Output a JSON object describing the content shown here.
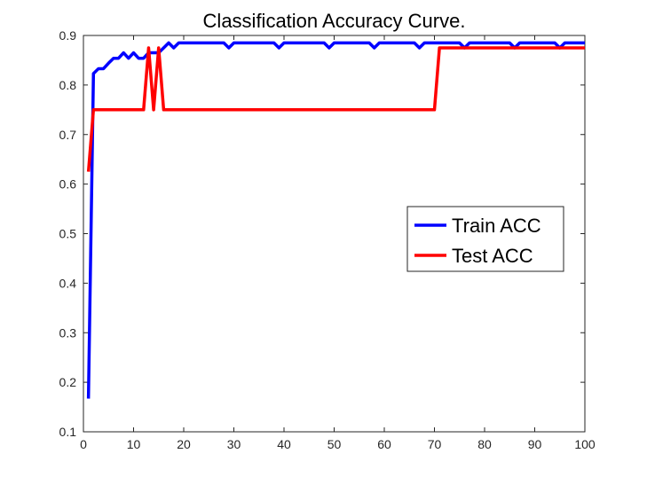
{
  "chart_data": {
    "type": "line",
    "title": "Classification Accuracy Curve.",
    "xlabel": "",
    "ylabel": "",
    "xlim": [
      0,
      100
    ],
    "ylim": [
      0.1,
      0.9
    ],
    "xticks": [
      0,
      10,
      20,
      30,
      40,
      50,
      60,
      70,
      80,
      90,
      100
    ],
    "yticks": [
      0.1,
      0.2,
      0.3,
      0.4,
      0.5,
      0.6,
      0.7,
      0.8,
      0.9
    ],
    "grid": false,
    "legend_position": "right",
    "series": [
      {
        "name": "Train ACC",
        "color": "#0000ff",
        "points": [
          [
            1,
            0.167
          ],
          [
            2,
            0.823
          ],
          [
            3,
            0.833
          ],
          [
            4,
            0.833
          ],
          [
            5,
            0.844
          ],
          [
            6,
            0.854
          ],
          [
            7,
            0.854
          ],
          [
            8,
            0.865
          ],
          [
            9,
            0.854
          ],
          [
            10,
            0.865
          ],
          [
            11,
            0.854
          ],
          [
            12,
            0.854
          ],
          [
            13,
            0.865
          ],
          [
            14,
            0.865
          ],
          [
            15,
            0.865
          ],
          [
            16,
            0.875
          ],
          [
            17,
            0.885
          ],
          [
            18,
            0.875
          ],
          [
            19,
            0.885
          ],
          [
            20,
            0.885
          ],
          [
            28,
            0.885
          ],
          [
            29,
            0.875
          ],
          [
            30,
            0.885
          ],
          [
            38,
            0.885
          ],
          [
            39,
            0.875
          ],
          [
            40,
            0.885
          ],
          [
            48,
            0.885
          ],
          [
            49,
            0.875
          ],
          [
            50,
            0.885
          ],
          [
            57,
            0.885
          ],
          [
            58,
            0.875
          ],
          [
            59,
            0.885
          ],
          [
            66,
            0.885
          ],
          [
            67,
            0.875
          ],
          [
            68,
            0.885
          ],
          [
            75,
            0.885
          ],
          [
            76,
            0.875
          ],
          [
            77,
            0.885
          ],
          [
            85,
            0.885
          ],
          [
            86,
            0.875
          ],
          [
            87,
            0.885
          ],
          [
            94,
            0.885
          ],
          [
            95,
            0.875
          ],
          [
            96,
            0.885
          ],
          [
            100,
            0.885
          ]
        ]
      },
      {
        "name": "Test ACC",
        "color": "#ff0000",
        "points": [
          [
            1,
            0.625
          ],
          [
            2,
            0.75
          ],
          [
            12,
            0.75
          ],
          [
            13,
            0.875
          ],
          [
            14,
            0.75
          ],
          [
            15,
            0.875
          ],
          [
            16,
            0.75
          ],
          [
            70,
            0.75
          ],
          [
            71,
            0.875
          ],
          [
            100,
            0.875
          ]
        ]
      }
    ]
  }
}
